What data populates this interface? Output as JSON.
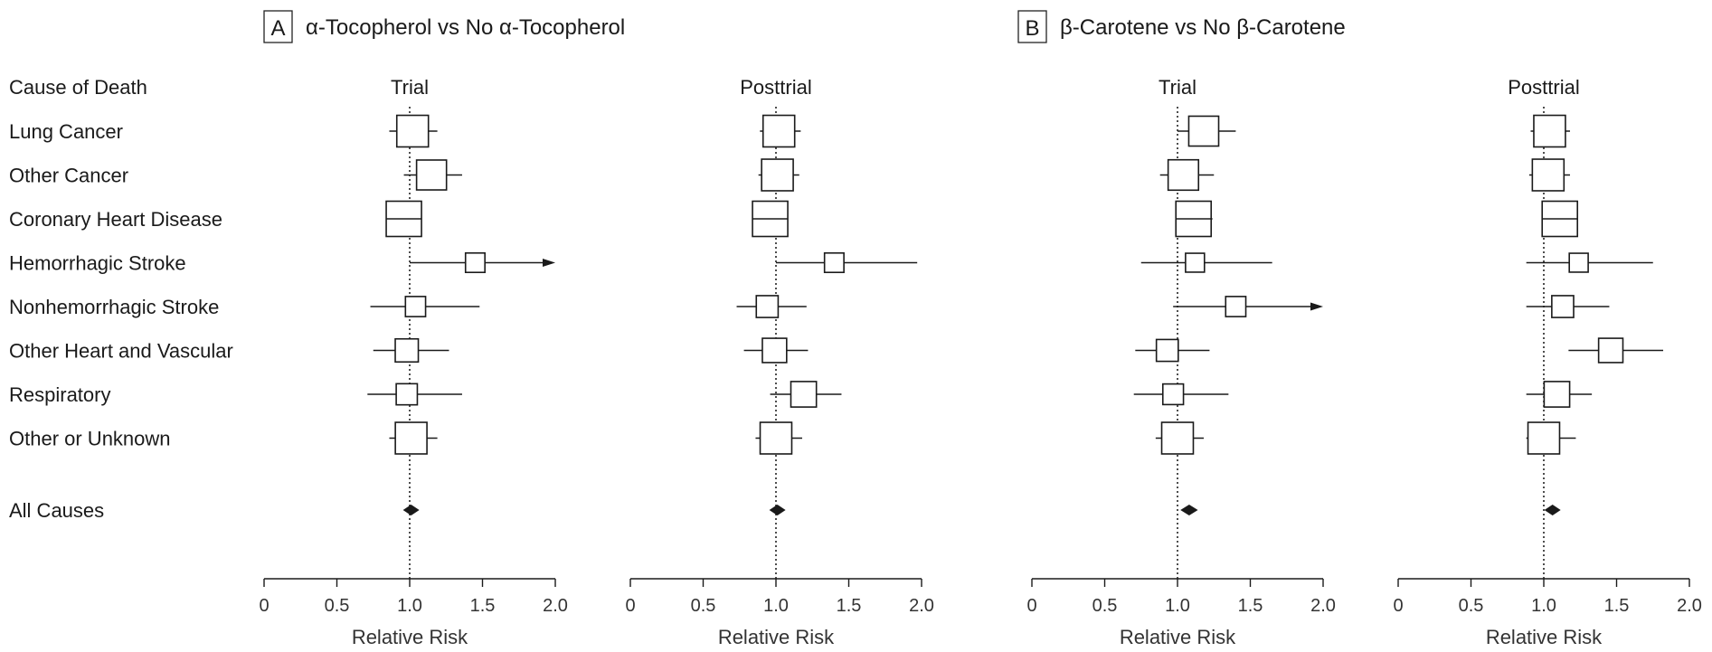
{
  "rows_header": "Cause of Death",
  "causes": [
    "Lung Cancer",
    "Other Cancer",
    "Coronary Heart Disease",
    "Hemorrhagic Stroke",
    "Nonhemorrhagic Stroke",
    "Other Heart and Vascular",
    "Respiratory",
    "Other or Unknown"
  ],
  "summary_label": "All Causes",
  "colors": {
    "ink": "#1a1a1a",
    "reference_line": "#222222"
  },
  "chart_data": [
    {
      "type": "forest",
      "panel": "A",
      "panel_title": "α-Tocopherol vs No α-Tocopherol",
      "subplots": [
        {
          "title": "Trial",
          "xlabel": "Relative Risk",
          "xlim": [
            0,
            2.0
          ],
          "xticks": [
            "0",
            "0.5",
            "1.0",
            "1.5",
            "2.0"
          ],
          "reference": 1.0,
          "rows": [
            {
              "cause": "Lung Cancer",
              "rr": 1.02,
              "lo": 0.86,
              "hi": 1.19,
              "weight": 0.85
            },
            {
              "cause": "Other Cancer",
              "rr": 1.15,
              "lo": 0.96,
              "hi": 1.36,
              "weight": 0.78
            },
            {
              "cause": "Coronary Heart Disease",
              "rr": 0.96,
              "lo": 0.86,
              "hi": 1.06,
              "weight": 1.0
            },
            {
              "cause": "Hemorrhagic Stroke",
              "rr": 1.45,
              "lo": 1.0,
              "hi": 2.0,
              "weight": 0.35,
              "arrow": true
            },
            {
              "cause": "Nonhemorrhagic Stroke",
              "rr": 1.04,
              "lo": 0.73,
              "hi": 1.48,
              "weight": 0.38
            },
            {
              "cause": "Other Heart and Vascular",
              "rr": 0.98,
              "lo": 0.75,
              "hi": 1.27,
              "weight": 0.5
            },
            {
              "cause": "Respiratory",
              "rr": 0.98,
              "lo": 0.71,
              "hi": 1.36,
              "weight": 0.42
            },
            {
              "cause": "Other or Unknown",
              "rr": 1.01,
              "lo": 0.86,
              "hi": 1.19,
              "weight": 0.85
            }
          ],
          "summary": {
            "rr": 1.01,
            "lo": 0.96,
            "hi": 1.06
          }
        },
        {
          "title": "Posttrial",
          "xlabel": "Relative Risk",
          "xlim": [
            0,
            2.0
          ],
          "xticks": [
            "0",
            "0.5",
            "1.0",
            "1.5",
            "2.0"
          ],
          "reference": 1.0,
          "rows": [
            {
              "cause": "Lung Cancer",
              "rr": 1.02,
              "lo": 0.89,
              "hi": 1.17,
              "weight": 0.85
            },
            {
              "cause": "Other Cancer",
              "rr": 1.01,
              "lo": 0.88,
              "hi": 1.16,
              "weight": 0.85
            },
            {
              "cause": "Coronary Heart Disease",
              "rr": 0.96,
              "lo": 0.87,
              "hi": 1.06,
              "weight": 1.0
            },
            {
              "cause": "Hemorrhagic Stroke",
              "rr": 1.4,
              "lo": 1.0,
              "hi": 1.97,
              "weight": 0.35
            },
            {
              "cause": "Nonhemorrhagic Stroke",
              "rr": 0.94,
              "lo": 0.73,
              "hi": 1.21,
              "weight": 0.45
            },
            {
              "cause": "Other Heart and Vascular",
              "rr": 0.99,
              "lo": 0.78,
              "hi": 1.22,
              "weight": 0.55
            },
            {
              "cause": "Respiratory",
              "rr": 1.19,
              "lo": 0.96,
              "hi": 1.45,
              "weight": 0.6
            },
            {
              "cause": "Other or Unknown",
              "rr": 1.0,
              "lo": 0.86,
              "hi": 1.18,
              "weight": 0.85
            }
          ],
          "summary": {
            "rr": 1.01,
            "lo": 0.96,
            "hi": 1.05
          }
        }
      ]
    },
    {
      "type": "forest",
      "panel": "B",
      "panel_title": "β-Carotene vs No β-Carotene",
      "subplots": [
        {
          "title": "Trial",
          "xlabel": "Relative Risk",
          "xlim": [
            0,
            2.0
          ],
          "xticks": [
            "0",
            "0.5",
            "1.0",
            "1.5",
            "2.0"
          ],
          "reference": 1.0,
          "rows": [
            {
              "cause": "Lung Cancer",
              "rr": 1.18,
              "lo": 1.0,
              "hi": 1.4,
              "weight": 0.78
            },
            {
              "cause": "Other Cancer",
              "rr": 1.04,
              "lo": 0.88,
              "hi": 1.25,
              "weight": 0.8
            },
            {
              "cause": "Coronary Heart Disease",
              "rr": 1.11,
              "lo": 0.99,
              "hi": 1.24,
              "weight": 1.0
            },
            {
              "cause": "Hemorrhagic Stroke",
              "rr": 1.12,
              "lo": 0.75,
              "hi": 1.65,
              "weight": 0.33
            },
            {
              "cause": "Nonhemorrhagic Stroke",
              "rr": 1.4,
              "lo": 0.97,
              "hi": 2.0,
              "weight": 0.38,
              "arrow": true
            },
            {
              "cause": "Other Heart and Vascular",
              "rr": 0.93,
              "lo": 0.71,
              "hi": 1.22,
              "weight": 0.45
            },
            {
              "cause": "Respiratory",
              "rr": 0.97,
              "lo": 0.7,
              "hi": 1.35,
              "weight": 0.4
            },
            {
              "cause": "Other or Unknown",
              "rr": 1.0,
              "lo": 0.85,
              "hi": 1.18,
              "weight": 0.85
            }
          ],
          "summary": {
            "rr": 1.08,
            "lo": 1.02,
            "hi": 1.14
          }
        },
        {
          "title": "Posttrial",
          "xlabel": "Relative Risk",
          "xlim": [
            0,
            2.0
          ],
          "xticks": [
            "0",
            "0.5",
            "1.0",
            "1.5",
            "2.0"
          ],
          "reference": 1.0,
          "rows": [
            {
              "cause": "Lung Cancer",
              "rr": 1.04,
              "lo": 0.91,
              "hi": 1.18,
              "weight": 0.85
            },
            {
              "cause": "Other Cancer",
              "rr": 1.03,
              "lo": 0.9,
              "hi": 1.18,
              "weight": 0.85
            },
            {
              "cause": "Coronary Heart Disease",
              "rr": 1.11,
              "lo": 0.99,
              "hi": 1.22,
              "weight": 1.0
            },
            {
              "cause": "Hemorrhagic Stroke",
              "rr": 1.24,
              "lo": 0.88,
              "hi": 1.75,
              "weight": 0.33
            },
            {
              "cause": "Nonhemorrhagic Stroke",
              "rr": 1.13,
              "lo": 0.88,
              "hi": 1.45,
              "weight": 0.45
            },
            {
              "cause": "Other Heart and Vascular",
              "rr": 1.46,
              "lo": 1.17,
              "hi": 1.82,
              "weight": 0.55
            },
            {
              "cause": "Respiratory",
              "rr": 1.09,
              "lo": 0.88,
              "hi": 1.33,
              "weight": 0.6
            },
            {
              "cause": "Other or Unknown",
              "rr": 1.0,
              "lo": 0.88,
              "hi": 1.22,
              "weight": 0.85
            }
          ],
          "summary": {
            "rr": 1.06,
            "lo": 1.01,
            "hi": 1.1
          }
        }
      ]
    }
  ]
}
